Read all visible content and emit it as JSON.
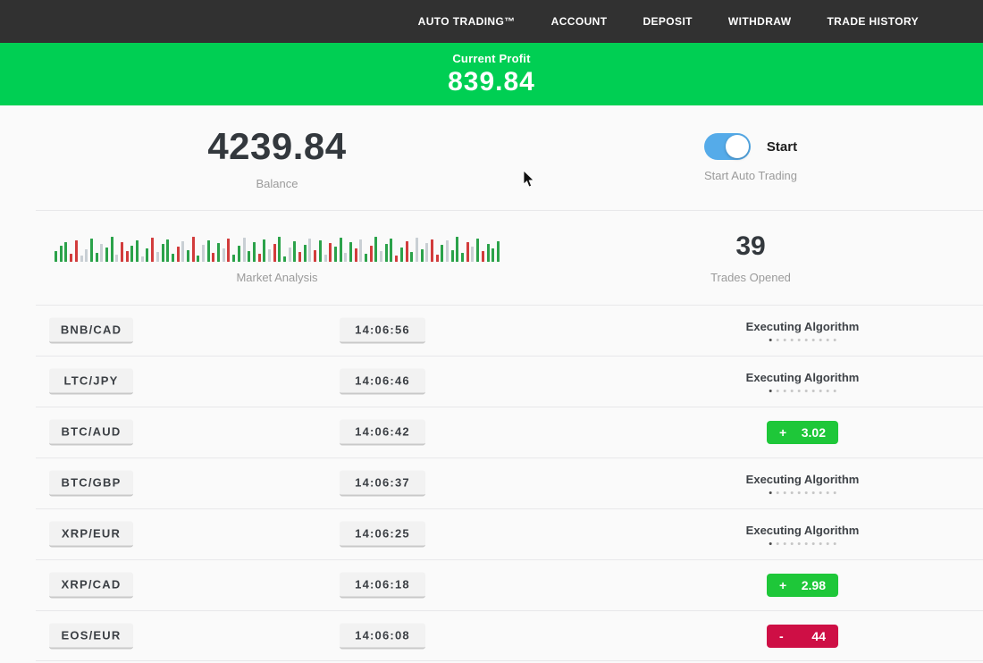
{
  "nav": {
    "items": [
      {
        "label": "AUTO TRADING™"
      },
      {
        "label": "ACCOUNT"
      },
      {
        "label": "DEPOSIT"
      },
      {
        "label": "WITHDRAW"
      },
      {
        "label": "TRADE HISTORY"
      }
    ],
    "bg_color": "#313131"
  },
  "profit_banner": {
    "label": "Current Profit",
    "value": "839.84",
    "bg_color": "#00cf53"
  },
  "account": {
    "balance": "4239.84",
    "balance_label": "Balance",
    "toggle_label": "Start",
    "toggle_caption": "Start Auto Trading",
    "toggle_on": true,
    "toggle_color": "#55abe9"
  },
  "market": {
    "label": "Market Analysis",
    "trades_opened": "39",
    "trades_label": "Trades Opened"
  },
  "chart_data": {
    "type": "bar",
    "title": "Market Analysis",
    "ylim": [
      0,
      30
    ],
    "palette": {
      "g": "#2ba24a",
      "r": "#d23c3c",
      "l": "#c9cfd4"
    },
    "bars": [
      [
        12,
        "g"
      ],
      [
        18,
        "g"
      ],
      [
        22,
        "g"
      ],
      [
        9,
        "r"
      ],
      [
        24,
        "r"
      ],
      [
        7,
        "l"
      ],
      [
        14,
        "l"
      ],
      [
        26,
        "g"
      ],
      [
        10,
        "g"
      ],
      [
        20,
        "l"
      ],
      [
        16,
        "g"
      ],
      [
        28,
        "g"
      ],
      [
        8,
        "l"
      ],
      [
        22,
        "r"
      ],
      [
        12,
        "r"
      ],
      [
        18,
        "g"
      ],
      [
        24,
        "g"
      ],
      [
        6,
        "l"
      ],
      [
        15,
        "g"
      ],
      [
        27,
        "r"
      ],
      [
        11,
        "l"
      ],
      [
        20,
        "g"
      ],
      [
        25,
        "g"
      ],
      [
        9,
        "g"
      ],
      [
        17,
        "r"
      ],
      [
        23,
        "l"
      ],
      [
        13,
        "g"
      ],
      [
        28,
        "r"
      ],
      [
        7,
        "g"
      ],
      [
        19,
        "l"
      ],
      [
        24,
        "g"
      ],
      [
        10,
        "r"
      ],
      [
        21,
        "g"
      ],
      [
        15,
        "l"
      ],
      [
        26,
        "r"
      ],
      [
        8,
        "g"
      ],
      [
        18,
        "g"
      ],
      [
        27,
        "l"
      ],
      [
        12,
        "g"
      ],
      [
        22,
        "g"
      ],
      [
        9,
        "r"
      ],
      [
        25,
        "g"
      ],
      [
        14,
        "l"
      ],
      [
        20,
        "r"
      ],
      [
        28,
        "g"
      ],
      [
        6,
        "g"
      ],
      [
        16,
        "l"
      ],
      [
        23,
        "g"
      ],
      [
        11,
        "r"
      ],
      [
        19,
        "g"
      ],
      [
        26,
        "l"
      ],
      [
        13,
        "r"
      ],
      [
        24,
        "g"
      ],
      [
        8,
        "l"
      ],
      [
        21,
        "r"
      ],
      [
        17,
        "g"
      ],
      [
        27,
        "g"
      ],
      [
        10,
        "l"
      ],
      [
        22,
        "g"
      ],
      [
        15,
        "r"
      ],
      [
        25,
        "l"
      ],
      [
        9,
        "g"
      ],
      [
        18,
        "r"
      ],
      [
        28,
        "g"
      ],
      [
        12,
        "l"
      ],
      [
        20,
        "g"
      ],
      [
        26,
        "g"
      ],
      [
        7,
        "r"
      ],
      [
        16,
        "g"
      ],
      [
        23,
        "r"
      ],
      [
        11,
        "g"
      ],
      [
        27,
        "l"
      ],
      [
        14,
        "g"
      ],
      [
        21,
        "l"
      ],
      [
        25,
        "r"
      ],
      [
        8,
        "r"
      ],
      [
        19,
        "g"
      ],
      [
        24,
        "l"
      ],
      [
        13,
        "g"
      ],
      [
        28,
        "g"
      ],
      [
        10,
        "g"
      ],
      [
        22,
        "r"
      ],
      [
        17,
        "l"
      ],
      [
        26,
        "g"
      ],
      [
        12,
        "r"
      ],
      [
        20,
        "g"
      ],
      [
        15,
        "g"
      ],
      [
        23,
        "g"
      ]
    ]
  },
  "trades": {
    "algorithm_label": "Executing Algorithm",
    "algorithm_dots": 10,
    "badge_colors": {
      "green": "#1ec739",
      "red": "#ce0f45"
    },
    "rows": [
      {
        "pair": "BNB/CAD",
        "time": "14:06:56",
        "status": {
          "kind": "algorithm"
        }
      },
      {
        "pair": "LTC/JPY",
        "time": "14:06:46",
        "status": {
          "kind": "algorithm"
        }
      },
      {
        "pair": "BTC/AUD",
        "time": "14:06:42",
        "status": {
          "kind": "result",
          "sign": "+",
          "value": "3.02",
          "color": "green"
        }
      },
      {
        "pair": "BTC/GBP",
        "time": "14:06:37",
        "status": {
          "kind": "algorithm"
        }
      },
      {
        "pair": "XRP/EUR",
        "time": "14:06:25",
        "status": {
          "kind": "algorithm"
        }
      },
      {
        "pair": "XRP/CAD",
        "time": "14:06:18",
        "status": {
          "kind": "result",
          "sign": "+",
          "value": "2.98",
          "color": "green"
        }
      },
      {
        "pair": "EOS/EUR",
        "time": "14:06:08",
        "status": {
          "kind": "result",
          "sign": "-",
          "value": "44",
          "color": "red"
        }
      }
    ]
  }
}
